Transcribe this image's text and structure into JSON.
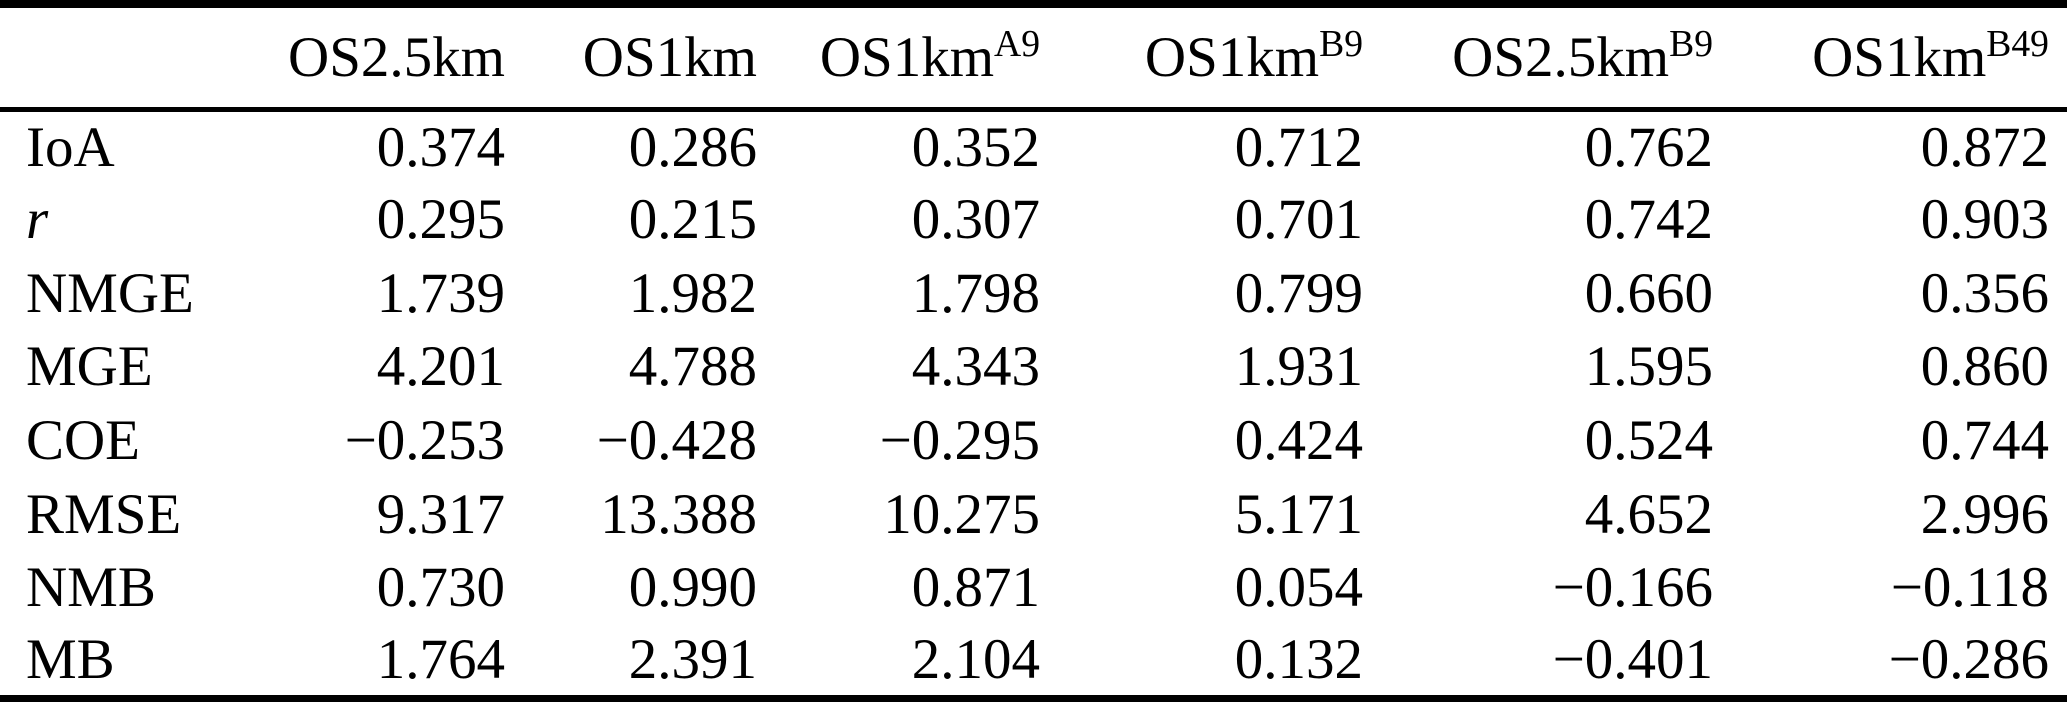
{
  "table": {
    "corner_label": "",
    "columns": [
      {
        "base": "OS2.5km",
        "sup": ""
      },
      {
        "base": "OS1km",
        "sup": ""
      },
      {
        "base": "OS1km",
        "sup": "A9"
      },
      {
        "base": "OS1km",
        "sup": "B9"
      },
      {
        "base": "OS2.5km",
        "sup": "B9"
      },
      {
        "base": "OS1km",
        "sup": "B49"
      }
    ],
    "rows": [
      {
        "label": "IoA",
        "values": [
          "0.374",
          "0.286",
          "0.352",
          "0.712",
          "0.762",
          "0.872"
        ]
      },
      {
        "label": "r",
        "values": [
          "0.295",
          "0.215",
          "0.307",
          "0.701",
          "0.742",
          "0.903"
        ]
      },
      {
        "label": "NMGE",
        "values": [
          "1.739",
          "1.982",
          "1.798",
          "0.799",
          "0.660",
          "0.356"
        ]
      },
      {
        "label": "MGE",
        "values": [
          "4.201",
          "4.788",
          "4.343",
          "1.931",
          "1.595",
          "0.860"
        ]
      },
      {
        "label": "COE",
        "values": [
          "−0.253",
          "−0.428",
          "−0.295",
          "0.424",
          "0.524",
          "0.744"
        ]
      },
      {
        "label": "RMSE",
        "values": [
          "9.317",
          "13.388",
          "10.275",
          "5.171",
          "4.652",
          "2.996"
        ]
      },
      {
        "label": "NMB",
        "values": [
          "0.730",
          "0.990",
          "0.871",
          "0.054",
          "−0.166",
          "−0.118"
        ]
      },
      {
        "label": "MB",
        "values": [
          "1.764",
          "2.391",
          "2.104",
          "0.132",
          "−0.401",
          "−0.286"
        ]
      }
    ]
  }
}
